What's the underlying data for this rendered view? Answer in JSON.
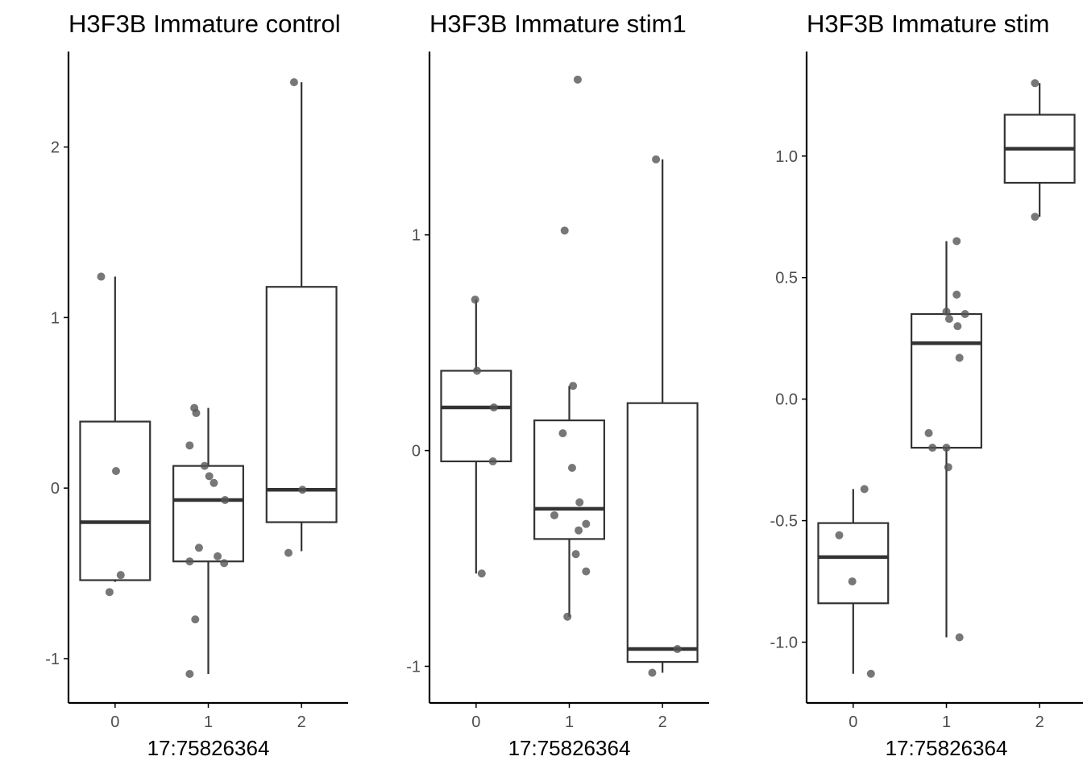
{
  "chart_data": [
    {
      "type": "box",
      "title": "H3F3B Immature control",
      "xlabel": "17:75826364",
      "ylabel": "",
      "categories": [
        "0",
        "1",
        "2"
      ],
      "y_ticks": [
        "-1",
        "0",
        "1",
        "2"
      ],
      "ylim": [
        -1.26,
        2.56
      ],
      "boxes": [
        {
          "category": "0",
          "whisker_low": -0.55,
          "q1": -0.54,
          "median": -0.2,
          "q3": 0.39,
          "whisker_high": 1.24
        },
        {
          "category": "1",
          "whisker_low": -1.09,
          "q1": -0.43,
          "median": -0.07,
          "q3": 0.13,
          "whisker_high": 0.47
        },
        {
          "category": "2",
          "whisker_low": -0.37,
          "q1": -0.2,
          "median": -0.01,
          "q3": 1.18,
          "whisker_high": 2.38
        }
      ],
      "points": [
        {
          "x": 0,
          "jitter": -0.15,
          "y": 1.24
        },
        {
          "x": 0,
          "jitter": 0.01,
          "y": 0.1
        },
        {
          "x": 0,
          "jitter": 0.06,
          "y": -0.51
        },
        {
          "x": 0,
          "jitter": -0.06,
          "y": -0.61
        },
        {
          "x": 1,
          "jitter": -0.15,
          "y": 0.47
        },
        {
          "x": 1,
          "jitter": -0.13,
          "y": 0.44
        },
        {
          "x": 1,
          "jitter": -0.2,
          "y": 0.25
        },
        {
          "x": 1,
          "jitter": -0.04,
          "y": 0.13
        },
        {
          "x": 1,
          "jitter": 0.01,
          "y": 0.07
        },
        {
          "x": 1,
          "jitter": 0.06,
          "y": 0.03
        },
        {
          "x": 1,
          "jitter": 0.18,
          "y": -0.07
        },
        {
          "x": 1,
          "jitter": -0.1,
          "y": -0.35
        },
        {
          "x": 1,
          "jitter": 0.1,
          "y": -0.4
        },
        {
          "x": 1,
          "jitter": -0.2,
          "y": -0.43
        },
        {
          "x": 1,
          "jitter": 0.17,
          "y": -0.44
        },
        {
          "x": 1,
          "jitter": -0.14,
          "y": -0.77
        },
        {
          "x": 1,
          "jitter": -0.2,
          "y": -1.09
        },
        {
          "x": 2,
          "jitter": -0.08,
          "y": 2.38
        },
        {
          "x": 2,
          "jitter": 0.01,
          "y": -0.01
        },
        {
          "x": 2,
          "jitter": -0.14,
          "y": -0.38
        }
      ]
    },
    {
      "type": "box",
      "title": "H3F3B Immature stim1",
      "xlabel": "17:75826364",
      "ylabel": "",
      "categories": [
        "0",
        "1",
        "2"
      ],
      "y_ticks": [
        "-1",
        "0",
        "1"
      ],
      "ylim": [
        -1.17,
        1.85
      ],
      "boxes": [
        {
          "category": "0",
          "whisker_low": -0.57,
          "q1": -0.05,
          "median": 0.2,
          "q3": 0.37,
          "whisker_high": 0.7
        },
        {
          "category": "1",
          "whisker_low": -0.77,
          "q1": -0.41,
          "median": -0.27,
          "q3": 0.14,
          "whisker_high": 0.3
        },
        {
          "category": "2",
          "whisker_low": -1.03,
          "q1": -0.98,
          "median": -0.92,
          "q3": 0.22,
          "whisker_high": 1.35
        }
      ],
      "points": [
        {
          "x": 0,
          "jitter": -0.01,
          "y": 0.7
        },
        {
          "x": 0,
          "jitter": 0.01,
          "y": 0.37
        },
        {
          "x": 0,
          "jitter": 0.19,
          "y": 0.2
        },
        {
          "x": 0,
          "jitter": 0.18,
          "y": -0.05
        },
        {
          "x": 0,
          "jitter": 0.06,
          "y": -0.57
        },
        {
          "x": 1,
          "jitter": 0.09,
          "y": 1.72
        },
        {
          "x": 1,
          "jitter": -0.05,
          "y": 1.02
        },
        {
          "x": 1,
          "jitter": 0.04,
          "y": 0.3
        },
        {
          "x": 1,
          "jitter": -0.07,
          "y": 0.08
        },
        {
          "x": 1,
          "jitter": 0.03,
          "y": -0.08
        },
        {
          "x": 1,
          "jitter": 0.11,
          "y": -0.24
        },
        {
          "x": 1,
          "jitter": -0.16,
          "y": -0.3
        },
        {
          "x": 1,
          "jitter": 0.18,
          "y": -0.34
        },
        {
          "x": 1,
          "jitter": 0.1,
          "y": -0.37
        },
        {
          "x": 1,
          "jitter": 0.07,
          "y": -0.48
        },
        {
          "x": 1,
          "jitter": 0.18,
          "y": -0.56
        },
        {
          "x": 1,
          "jitter": -0.02,
          "y": -0.77
        },
        {
          "x": 2,
          "jitter": -0.07,
          "y": 1.35
        },
        {
          "x": 2,
          "jitter": 0.16,
          "y": -0.92
        },
        {
          "x": 2,
          "jitter": -0.11,
          "y": -1.03
        }
      ]
    },
    {
      "type": "box",
      "title": "H3F3B Immature stim",
      "xlabel": "17:75826364",
      "ylabel": "",
      "categories": [
        "0",
        "1",
        "2"
      ],
      "y_ticks": [
        "-1.0",
        "-0.5",
        "0.0",
        "0.5",
        "1.0"
      ],
      "ylim": [
        -1.25,
        1.43
      ],
      "boxes": [
        {
          "category": "0",
          "whisker_low": -1.13,
          "q1": -0.84,
          "median": -0.65,
          "q3": -0.51,
          "whisker_high": -0.37
        },
        {
          "category": "1",
          "whisker_low": -0.98,
          "q1": -0.2,
          "median": 0.23,
          "q3": 0.35,
          "whisker_high": 0.65
        },
        {
          "category": "2",
          "whisker_low": 0.75,
          "q1": 0.89,
          "median": 1.03,
          "q3": 1.17,
          "whisker_high": 1.3
        }
      ],
      "points": [
        {
          "x": 0,
          "jitter": 0.12,
          "y": -0.37
        },
        {
          "x": 0,
          "jitter": -0.15,
          "y": -0.56
        },
        {
          "x": 0,
          "jitter": -0.01,
          "y": -0.75
        },
        {
          "x": 0,
          "jitter": 0.19,
          "y": -1.13
        },
        {
          "x": 1,
          "jitter": 0.11,
          "y": 0.65
        },
        {
          "x": 1,
          "jitter": 0.11,
          "y": 0.43
        },
        {
          "x": 1,
          "jitter": 0.0,
          "y": 0.36
        },
        {
          "x": 1,
          "jitter": 0.2,
          "y": 0.35
        },
        {
          "x": 1,
          "jitter": 0.03,
          "y": 0.33
        },
        {
          "x": 1,
          "jitter": 0.12,
          "y": 0.3
        },
        {
          "x": 1,
          "jitter": 0.14,
          "y": 0.17
        },
        {
          "x": 1,
          "jitter": -0.19,
          "y": -0.14
        },
        {
          "x": 1,
          "jitter": -0.15,
          "y": -0.2
        },
        {
          "x": 1,
          "jitter": 0.0,
          "y": -0.2
        },
        {
          "x": 1,
          "jitter": 0.02,
          "y": -0.28
        },
        {
          "x": 1,
          "jitter": 0.14,
          "y": -0.98
        },
        {
          "x": 2,
          "jitter": -0.05,
          "y": 1.3
        },
        {
          "x": 2,
          "jitter": -0.05,
          "y": 0.75
        }
      ]
    }
  ],
  "colors": {
    "box_stroke": "#333333",
    "point_fill": "#555555",
    "axis": "#000000",
    "tick_text": "#4d4d4d",
    "background": "#ffffff"
  }
}
